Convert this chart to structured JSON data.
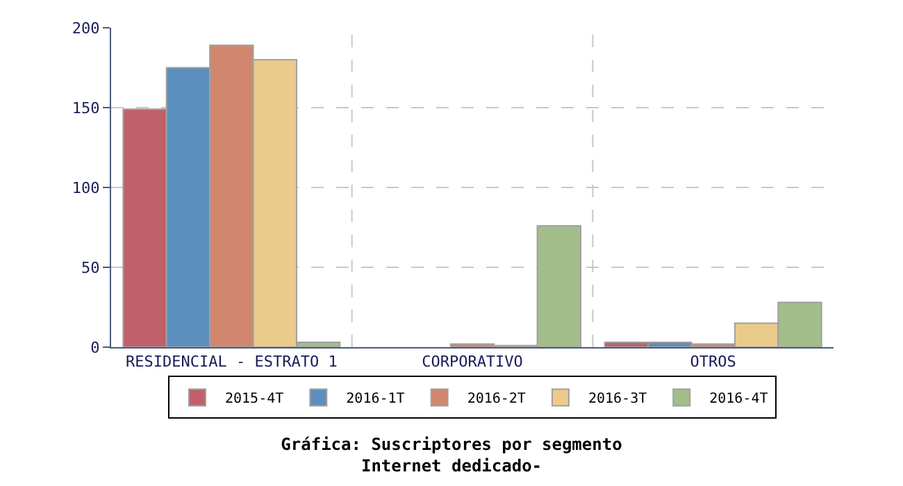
{
  "chart_data": {
    "type": "bar",
    "title": "Gráfica: Suscriptores por segmento",
    "subtitle": "Internet dedicado-",
    "categories": [
      "RESIDENCIAL - ESTRATO 1",
      "CORPORATIVO",
      "OTROS"
    ],
    "series": [
      {
        "name": "2015-4T",
        "color": "#c0616b",
        "values": [
          149,
          null,
          3
        ]
      },
      {
        "name": "2016-1T",
        "color": "#5b8fbe",
        "values": [
          175,
          null,
          3
        ]
      },
      {
        "name": "2016-2T",
        "color": "#d0876e",
        "values": [
          189,
          2,
          2
        ]
      },
      {
        "name": "2016-3T",
        "color": "#ebcb8b",
        "values": [
          180,
          1,
          15
        ]
      },
      {
        "name": "2016-4T",
        "color": "#a3bd8b",
        "values": [
          3,
          76,
          28
        ]
      }
    ],
    "ylim": [
      0,
      200
    ],
    "yticks": [
      0,
      50,
      100,
      150,
      200
    ],
    "grid": true,
    "legend": "bottom"
  }
}
